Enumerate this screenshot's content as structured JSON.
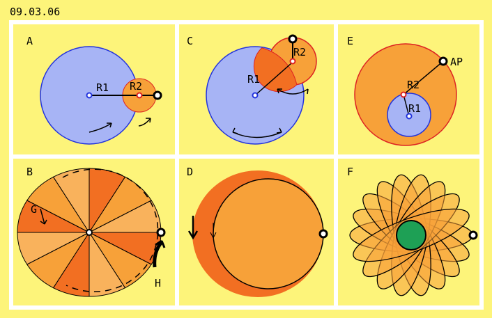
{
  "header": {
    "date": "09.03.06"
  },
  "colors": {
    "background": "#fdf47a",
    "frame": "#ffffff",
    "blue_fill": "#a7b4f5",
    "blue_stroke": "#2233dd",
    "orange_fill": "#f7a139",
    "orange_dark": "#f26f22",
    "orange_light": "#f9b25c",
    "red_stroke": "#dd2222",
    "green_fill": "#1ea055",
    "black": "#000000"
  },
  "panels": {
    "a": {
      "label": "A",
      "r1": "R1",
      "r2": "R2"
    },
    "b": {
      "label": "B",
      "g": "G",
      "h": "H"
    },
    "c": {
      "label": "C",
      "r1": "R1",
      "r2": "R2"
    },
    "d": {
      "label": "D"
    },
    "e": {
      "label": "E",
      "r1": "R1",
      "r2": "R2",
      "ap": "AP"
    },
    "f": {
      "label": "F"
    }
  }
}
